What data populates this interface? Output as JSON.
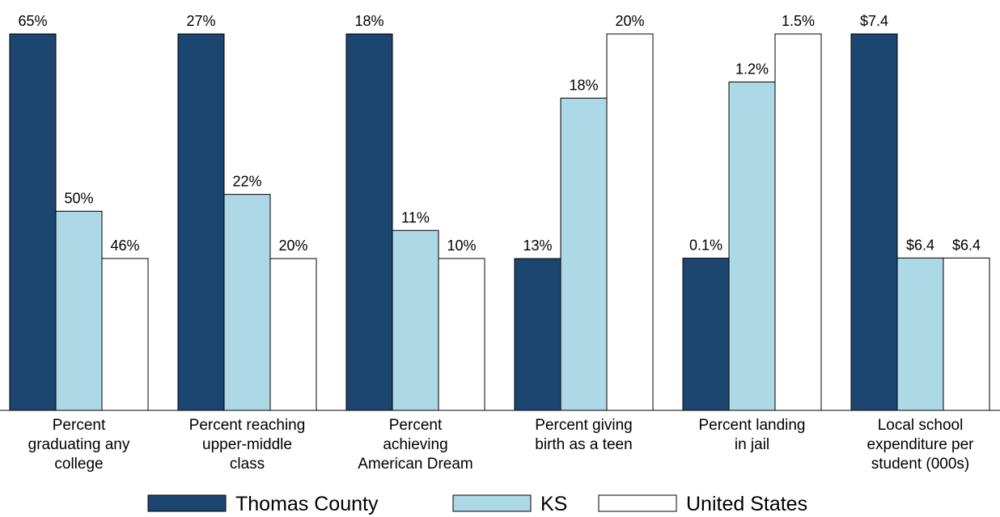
{
  "chart_data": {
    "type": "bar",
    "categories": [
      [
        "Percent",
        "graduating any",
        "college"
      ],
      [
        "Percent reaching",
        "upper-middle",
        "class"
      ],
      [
        "Percent",
        "achieving",
        "American Dream"
      ],
      [
        "Percent giving",
        "birth as a teen"
      ],
      [
        "Percent landing",
        "in jail"
      ],
      [
        "Local school",
        "expenditure per",
        "student (000s)"
      ]
    ],
    "group_ylim": [
      [
        33.15,
        65
      ],
      [
        15.27,
        27
      ],
      [
        4.59,
        18
      ],
      [
        8.27,
        20
      ],
      [
        -0.85,
        1.5
      ],
      [
        5.72,
        7.4
      ]
    ],
    "series": [
      {
        "name": "Thomas County",
        "color": "#1c4670",
        "values": [
          65,
          27,
          18,
          13,
          0.1,
          7.4
        ],
        "value_labels": [
          "65%",
          "27%",
          "18%",
          "13%",
          "0.1%",
          "$7.4"
        ]
      },
      {
        "name": "KS",
        "color": "#add8e6",
        "values": [
          50,
          22,
          11,
          18,
          1.2,
          6.4
        ],
        "value_labels": [
          "50%",
          "22%",
          "11%",
          "18%",
          "1.2%",
          "$6.4"
        ]
      },
      {
        "name": "United States",
        "color": "#ffffff",
        "values": [
          46,
          20,
          10,
          20,
          1.5,
          6.4
        ],
        "value_labels": [
          "46%",
          "20%",
          "10%",
          "20%",
          "1.5%",
          "$6.4"
        ]
      }
    ]
  }
}
